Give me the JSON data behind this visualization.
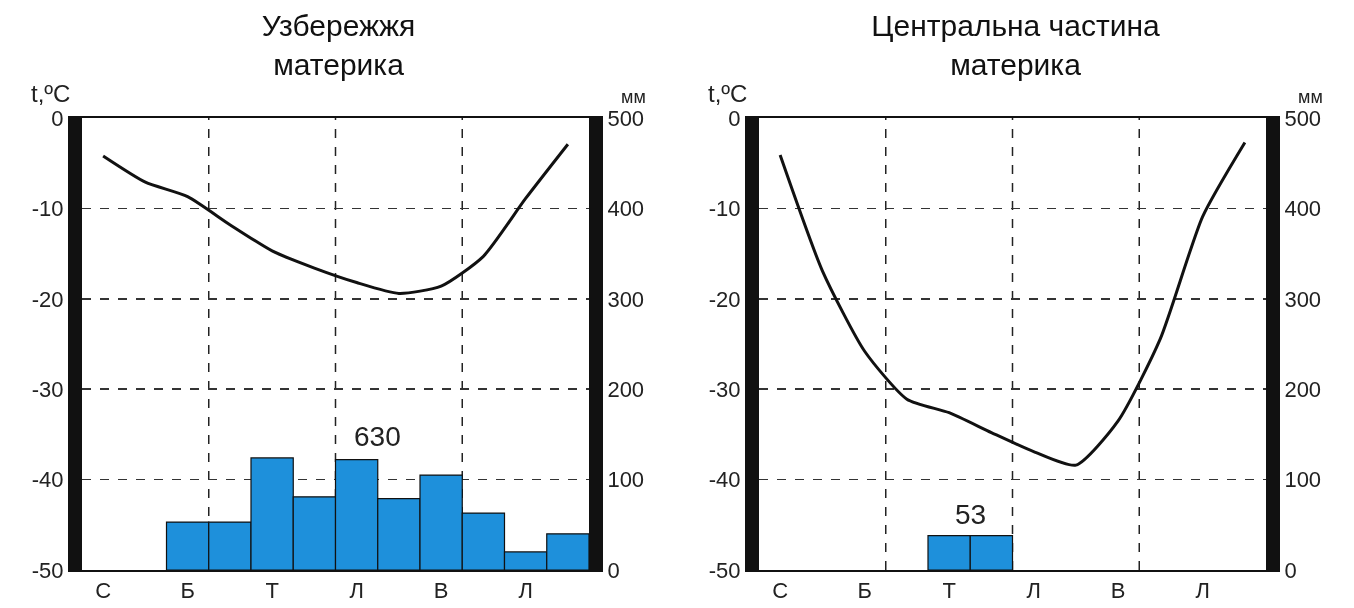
{
  "chart_data": [
    {
      "type": "bar",
      "title": "Узбережжя материка",
      "ylabel": "t,ºC",
      "y2label": "мм",
      "categories": [
        "С",
        null,
        "Б",
        null,
        "Т",
        null,
        "Л",
        null,
        "В",
        null,
        "Л",
        null
      ],
      "ylim": [
        -50,
        0
      ],
      "yticks": [
        -50,
        -40,
        -30,
        -20,
        -10,
        0
      ],
      "y2lim": [
        0,
        500
      ],
      "y2ticks": [
        0,
        100,
        200,
        300,
        400,
        500
      ],
      "grid": "y",
      "series": [
        {
          "axis": "y2",
          "color": "#1e90db",
          "values": [
            0,
            0,
            53,
            53,
            124,
            81,
            122,
            79,
            105,
            63,
            20,
            40
          ]
        },
        {
          "type": "line",
          "axis": "y",
          "color": "#111111",
          "values": [
            -4.2,
            -7.1,
            -8.7,
            -11.8,
            -14.7,
            -16.6,
            -18.2,
            -19.4,
            -18.6,
            -15.3,
            -8.9,
            -2.9
          ]
        }
      ],
      "annotations": [
        "630"
      ]
    },
    {
      "type": "bar",
      "title": "Центральна частина материка",
      "ylabel": "t,ºC",
      "y2label": "мм",
      "categories": [
        "С",
        null,
        "Б",
        null,
        "Т",
        null,
        "Л",
        null,
        "В",
        null,
        "Л",
        null
      ],
      "ylim": [
        -50,
        0
      ],
      "yticks": [
        -50,
        -40,
        -30,
        -20,
        -10,
        0
      ],
      "y2lim": [
        0,
        500
      ],
      "y2ticks": [
        0,
        100,
        200,
        300,
        400,
        500
      ],
      "grid": "y",
      "series": [
        {
          "axis": "y2",
          "color": "#1e90db",
          "values": [
            0,
            0,
            0,
            0,
            38,
            38,
            0,
            0,
            0,
            0,
            0,
            0
          ]
        },
        {
          "type": "line",
          "axis": "y",
          "color": "#111111",
          "values": [
            -4.1,
            -16.9,
            -25.8,
            -31.1,
            -32.6,
            -34.8,
            -36.9,
            -38.4,
            -33.5,
            -24.4,
            -10.9,
            -2.7
          ]
        }
      ],
      "annotations": [
        "53"
      ]
    }
  ]
}
